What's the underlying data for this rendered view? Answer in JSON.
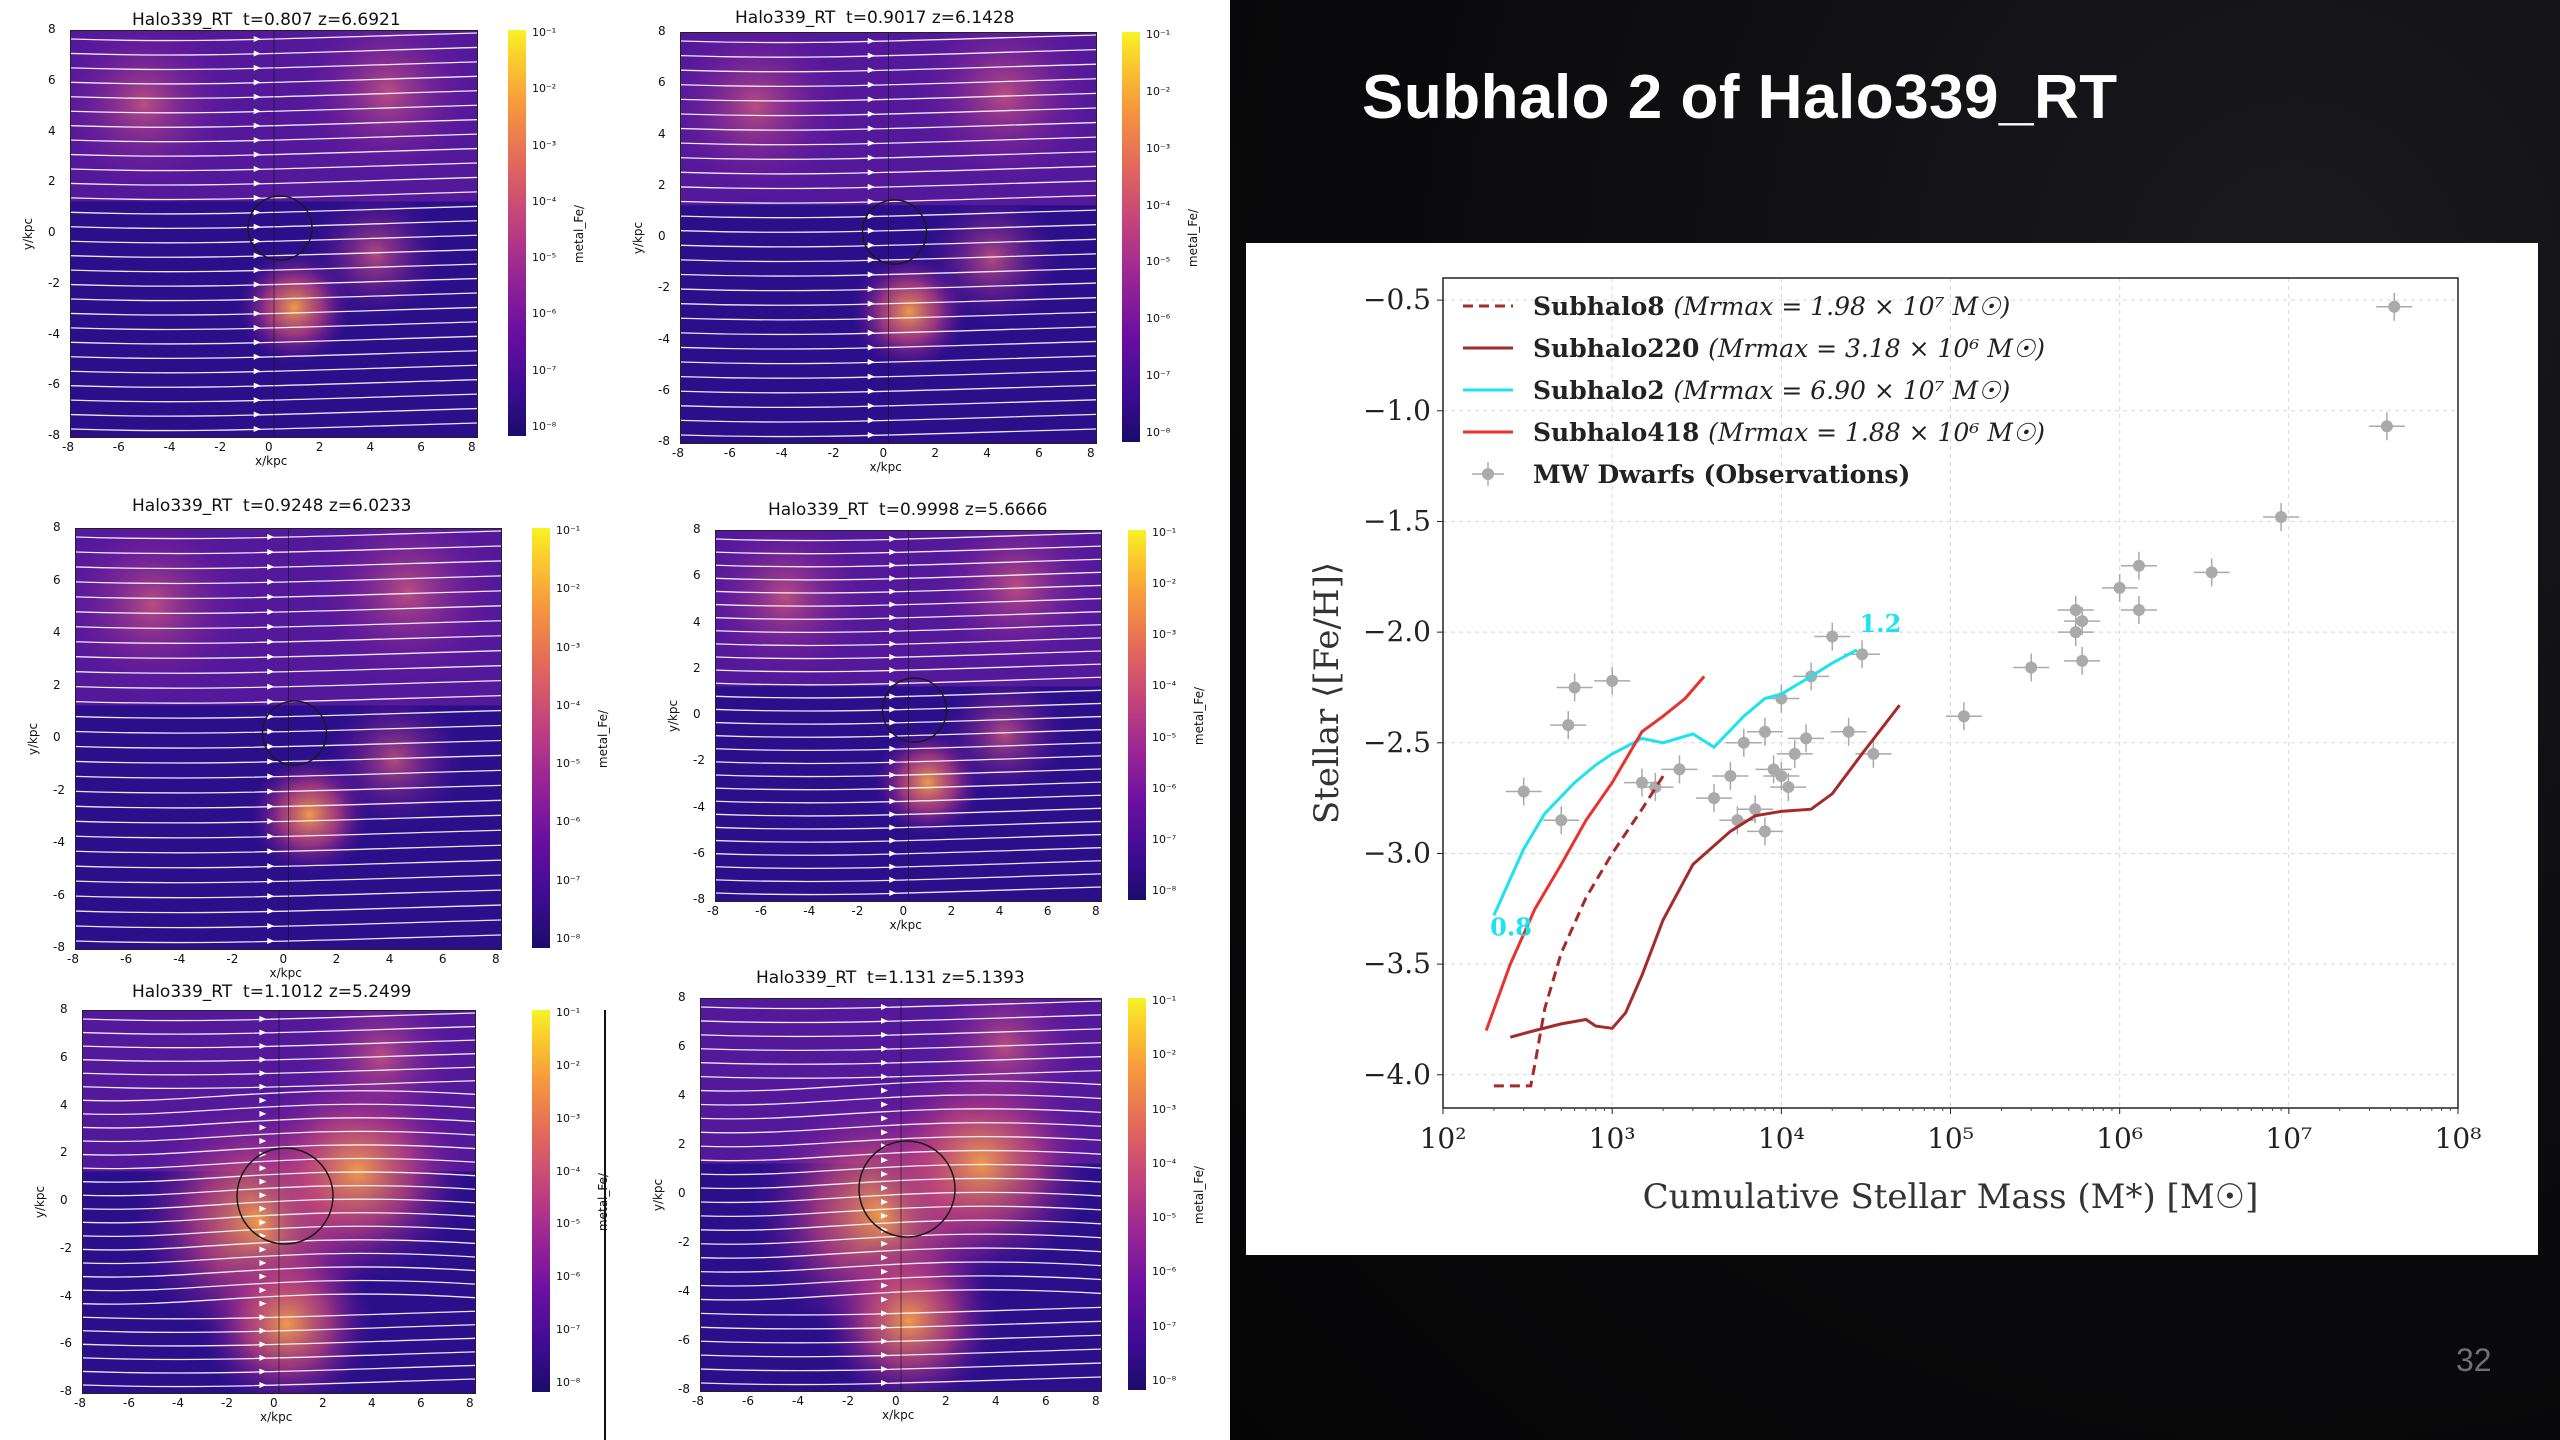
{
  "slide": {
    "title": "Subhalo 2 of Halo339_RT",
    "page_number": "32"
  },
  "panels": [
    {
      "title": "Halo339_RT  t=0.807 z=6.6921",
      "cbar_label": "metal_Fe/"
    },
    {
      "title": "Halo339_RT  t=0.9017 z=6.1428",
      "cbar_label": "metal_Fe/"
    },
    {
      "title": "Halo339_RT  t=0.9248 z=6.0233",
      "cbar_label": "metal_Fe/"
    },
    {
      "title": "Halo339_RT  t=0.9998 z=5.6666",
      "cbar_label": "metal_Fe/"
    },
    {
      "title": "Halo339_RT  t=1.1012 z=5.2499",
      "cbar_label": "metal_Fe/"
    },
    {
      "title": "Halo339_RT  t=1.131 z=5.1393",
      "cbar_label": "metal_Fe/"
    }
  ],
  "panel_axes": {
    "xlabel": "x/kpc",
    "ylabel": "y/kpc",
    "ticks": [
      "-8",
      "-6",
      "-4",
      "-2",
      "0",
      "2",
      "4",
      "6",
      "8"
    ],
    "cbar_ticks": [
      "10⁻¹",
      "10⁻²",
      "10⁻³",
      "10⁻⁴",
      "10⁻⁵",
      "10⁻⁶",
      "10⁻⁷",
      "10⁻⁸"
    ],
    "colormap": [
      "#1a0c6b",
      "#6a0fa1",
      "#c4447b",
      "#f79a3c",
      "#f6f426"
    ],
    "stream_color": "#ffffff"
  },
  "chart_data": {
    "type": "line",
    "xlabel": "Cumulative Stellar Mass (M*) [M☉]",
    "ylabel": "Stellar ⟨[Fe/H]⟩",
    "xscale": "log",
    "xlim": [
      100,
      100000000
    ],
    "ylim": [
      -4.15,
      -0.4
    ],
    "xticks": [
      "10²",
      "10³",
      "10⁴",
      "10⁵",
      "10⁶",
      "10⁷",
      "10⁸"
    ],
    "yticks": [
      "−0.5",
      "−1.0",
      "−1.5",
      "−2.0",
      "−2.5",
      "−3.0",
      "−3.5",
      "−4.0"
    ],
    "grid": true,
    "legend_position": "top-left",
    "series": [
      {
        "name": "Subhalo8",
        "mass_note": "(Mrmax = 1.98 × 10⁷ M☉)",
        "color": "#a52a2a",
        "style": "dashed",
        "x": [
          200,
          330,
          350,
          400,
          500,
          700,
          1000,
          1500,
          2000
        ],
        "y": [
          -4.05,
          -4.05,
          -3.95,
          -3.7,
          -3.45,
          -3.2,
          -3.0,
          -2.8,
          -2.65
        ]
      },
      {
        "name": "Subhalo220",
        "mass_note": "(Mrmax = 3.18 × 10⁶ M☉)",
        "color": "#a52a2a",
        "style": "solid",
        "x": [
          250,
          350,
          500,
          700,
          800,
          1000,
          1200,
          1500,
          2000,
          3000,
          5000,
          7000,
          10000,
          15000,
          20000,
          30000,
          50000
        ],
        "y": [
          -3.83,
          -3.8,
          -3.77,
          -3.75,
          -3.78,
          -3.79,
          -3.72,
          -3.55,
          -3.3,
          -3.05,
          -2.9,
          -2.83,
          -2.81,
          -2.8,
          -2.73,
          -2.55,
          -2.33
        ]
      },
      {
        "name": "Subhalo2",
        "mass_note": "(Mrmax = 6.90 × 10⁷ M☉)",
        "color": "#1de3f0",
        "style": "solid",
        "x": [
          200,
          300,
          400,
          600,
          800,
          1000,
          1500,
          2000,
          3000,
          4000,
          6000,
          8000,
          10000,
          15000,
          20000,
          28000
        ],
        "y": [
          -3.28,
          -2.98,
          -2.82,
          -2.68,
          -2.6,
          -2.55,
          -2.48,
          -2.5,
          -2.46,
          -2.52,
          -2.38,
          -2.3,
          -2.28,
          -2.2,
          -2.14,
          -2.08
        ]
      },
      {
        "name": "Subhalo418",
        "mass_note": "(Mrmax = 1.88 × 10⁶ M☉)",
        "color": "#e8322e",
        "style": "solid",
        "x": [
          180,
          250,
          350,
          500,
          700,
          1000,
          1500,
          2000,
          2700,
          3500
        ],
        "y": [
          -3.8,
          -3.5,
          -3.25,
          -3.05,
          -2.85,
          -2.68,
          -2.45,
          -2.38,
          -2.3,
          -2.2
        ]
      }
    ],
    "observations": {
      "name": "MW Dwarfs (Observations)",
      "color": "#aaaaaa",
      "x": [
        42000000,
        38000000,
        9000000,
        3500000,
        1300000,
        1300000,
        1000000,
        600000,
        550000,
        550000,
        600000,
        300000,
        120000,
        30000,
        20000,
        15000,
        10000,
        8000,
        6000,
        12000,
        9000,
        11000,
        25000,
        35000,
        5000,
        4000,
        2500,
        1800,
        1000,
        600,
        550,
        300,
        500,
        1500,
        7000,
        10000,
        14000,
        8000,
        5500
      ],
      "y": [
        -0.53,
        -1.07,
        -1.48,
        -1.73,
        -1.7,
        -1.9,
        -1.8,
        -1.95,
        -1.9,
        -2.0,
        -2.13,
        -2.16,
        -2.38,
        -2.1,
        -2.02,
        -2.2,
        -2.3,
        -2.45,
        -2.5,
        -2.55,
        -2.62,
        -2.7,
        -2.45,
        -2.55,
        -2.65,
        -2.75,
        -2.62,
        -2.7,
        -2.22,
        -2.25,
        -2.42,
        -2.72,
        -2.85,
        -2.68,
        -2.8,
        -2.65,
        -2.48,
        -2.9,
        -2.85
      ]
    },
    "annotations": [
      {
        "text": "0.8",
        "x": 190,
        "y": -3.37,
        "color": "#1de3f0"
      },
      {
        "text": "1.2",
        "x": 29000,
        "y": -2.0,
        "color": "#1de3f0"
      }
    ]
  }
}
